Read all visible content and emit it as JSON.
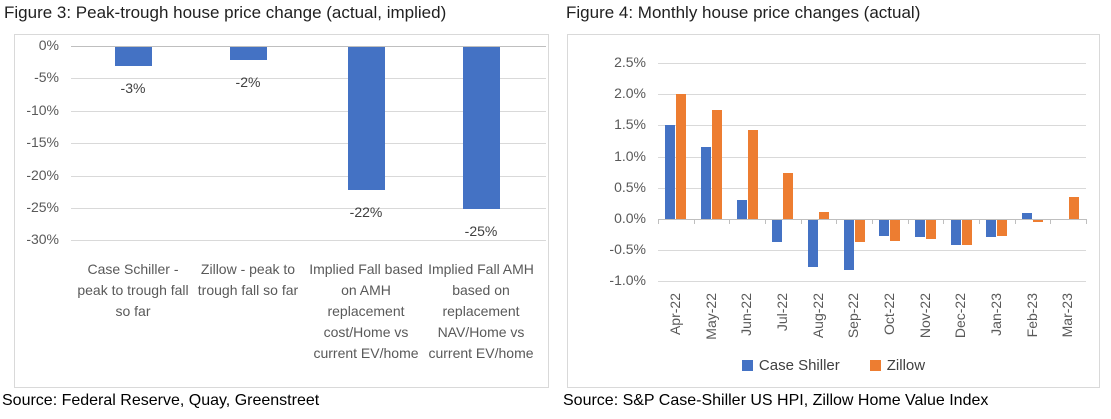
{
  "figures": [
    {
      "title": "Figure 3: Peak-trough house price change (actual, implied)",
      "source": "Source: Federal Reserve, Quay, Greenstreet"
    },
    {
      "title": "Figure 4: Monthly house price changes (actual)",
      "source": "Source: S&P Case-Shiller US HPI, Zillow Home Value Index"
    }
  ],
  "chart_data": [
    {
      "type": "bar",
      "title": "Figure 3: Peak-trough house price change (actual, implied)",
      "categories": [
        "Case Schiller - peak to trough fall so far",
        "Zillow - peak to trough fall so far",
        "Implied Fall based on AMH replacement cost/Home vs current EV/home",
        "Implied Fall AMH based on replacement NAV/Home vs current EV/home"
      ],
      "values": [
        -3,
        -2,
        -22,
        -25
      ],
      "data_labels": [
        "-3%",
        "-2%",
        "-22%",
        "-25%"
      ],
      "y_ticks": [
        "0%",
        "-5%",
        "-10%",
        "-15%",
        "-20%",
        "-25%",
        "-30%"
      ],
      "ylim": [
        -30,
        0
      ],
      "bar_color": "#4472C4",
      "grid": true,
      "legend_position": "none"
    },
    {
      "type": "bar",
      "title": "Figure 4: Monthly house price changes (actual)",
      "categories": [
        "Apr-22",
        "May-22",
        "Jun-22",
        "Jul-22",
        "Aug-22",
        "Sep-22",
        "Oct-22",
        "Nov-22",
        "Dec-22",
        "Jan-23",
        "Feb-23",
        "Mar-23"
      ],
      "series": [
        {
          "name": "Case Shiller",
          "color": "#4472C4",
          "values": [
            1.5,
            1.15,
            0.3,
            -0.35,
            -0.75,
            -0.8,
            -0.25,
            -0.28,
            -0.4,
            -0.28,
            0.1,
            0
          ]
        },
        {
          "name": "Zillow",
          "color": "#ED7D31",
          "values": [
            2.0,
            1.75,
            1.42,
            0.73,
            0.12,
            -0.35,
            -0.33,
            -0.3,
            -0.4,
            -0.25,
            -0.03,
            0.35
          ]
        }
      ],
      "y_ticks": [
        "2.5%",
        "2.0%",
        "1.5%",
        "1.0%",
        "0.5%",
        "0.0%",
        "-0.5%",
        "-1.0%"
      ],
      "ylim": [
        -1.0,
        2.5
      ],
      "grid": true,
      "legend_position": "bottom"
    }
  ],
  "colors": {
    "case_shiller_blue": "#4472C4",
    "zillow_orange": "#ED7D31",
    "gridline": "#d9d9d9",
    "axis_line": "#bfbfbf",
    "tick_text": "#595959",
    "data_label_text": "#404040"
  }
}
